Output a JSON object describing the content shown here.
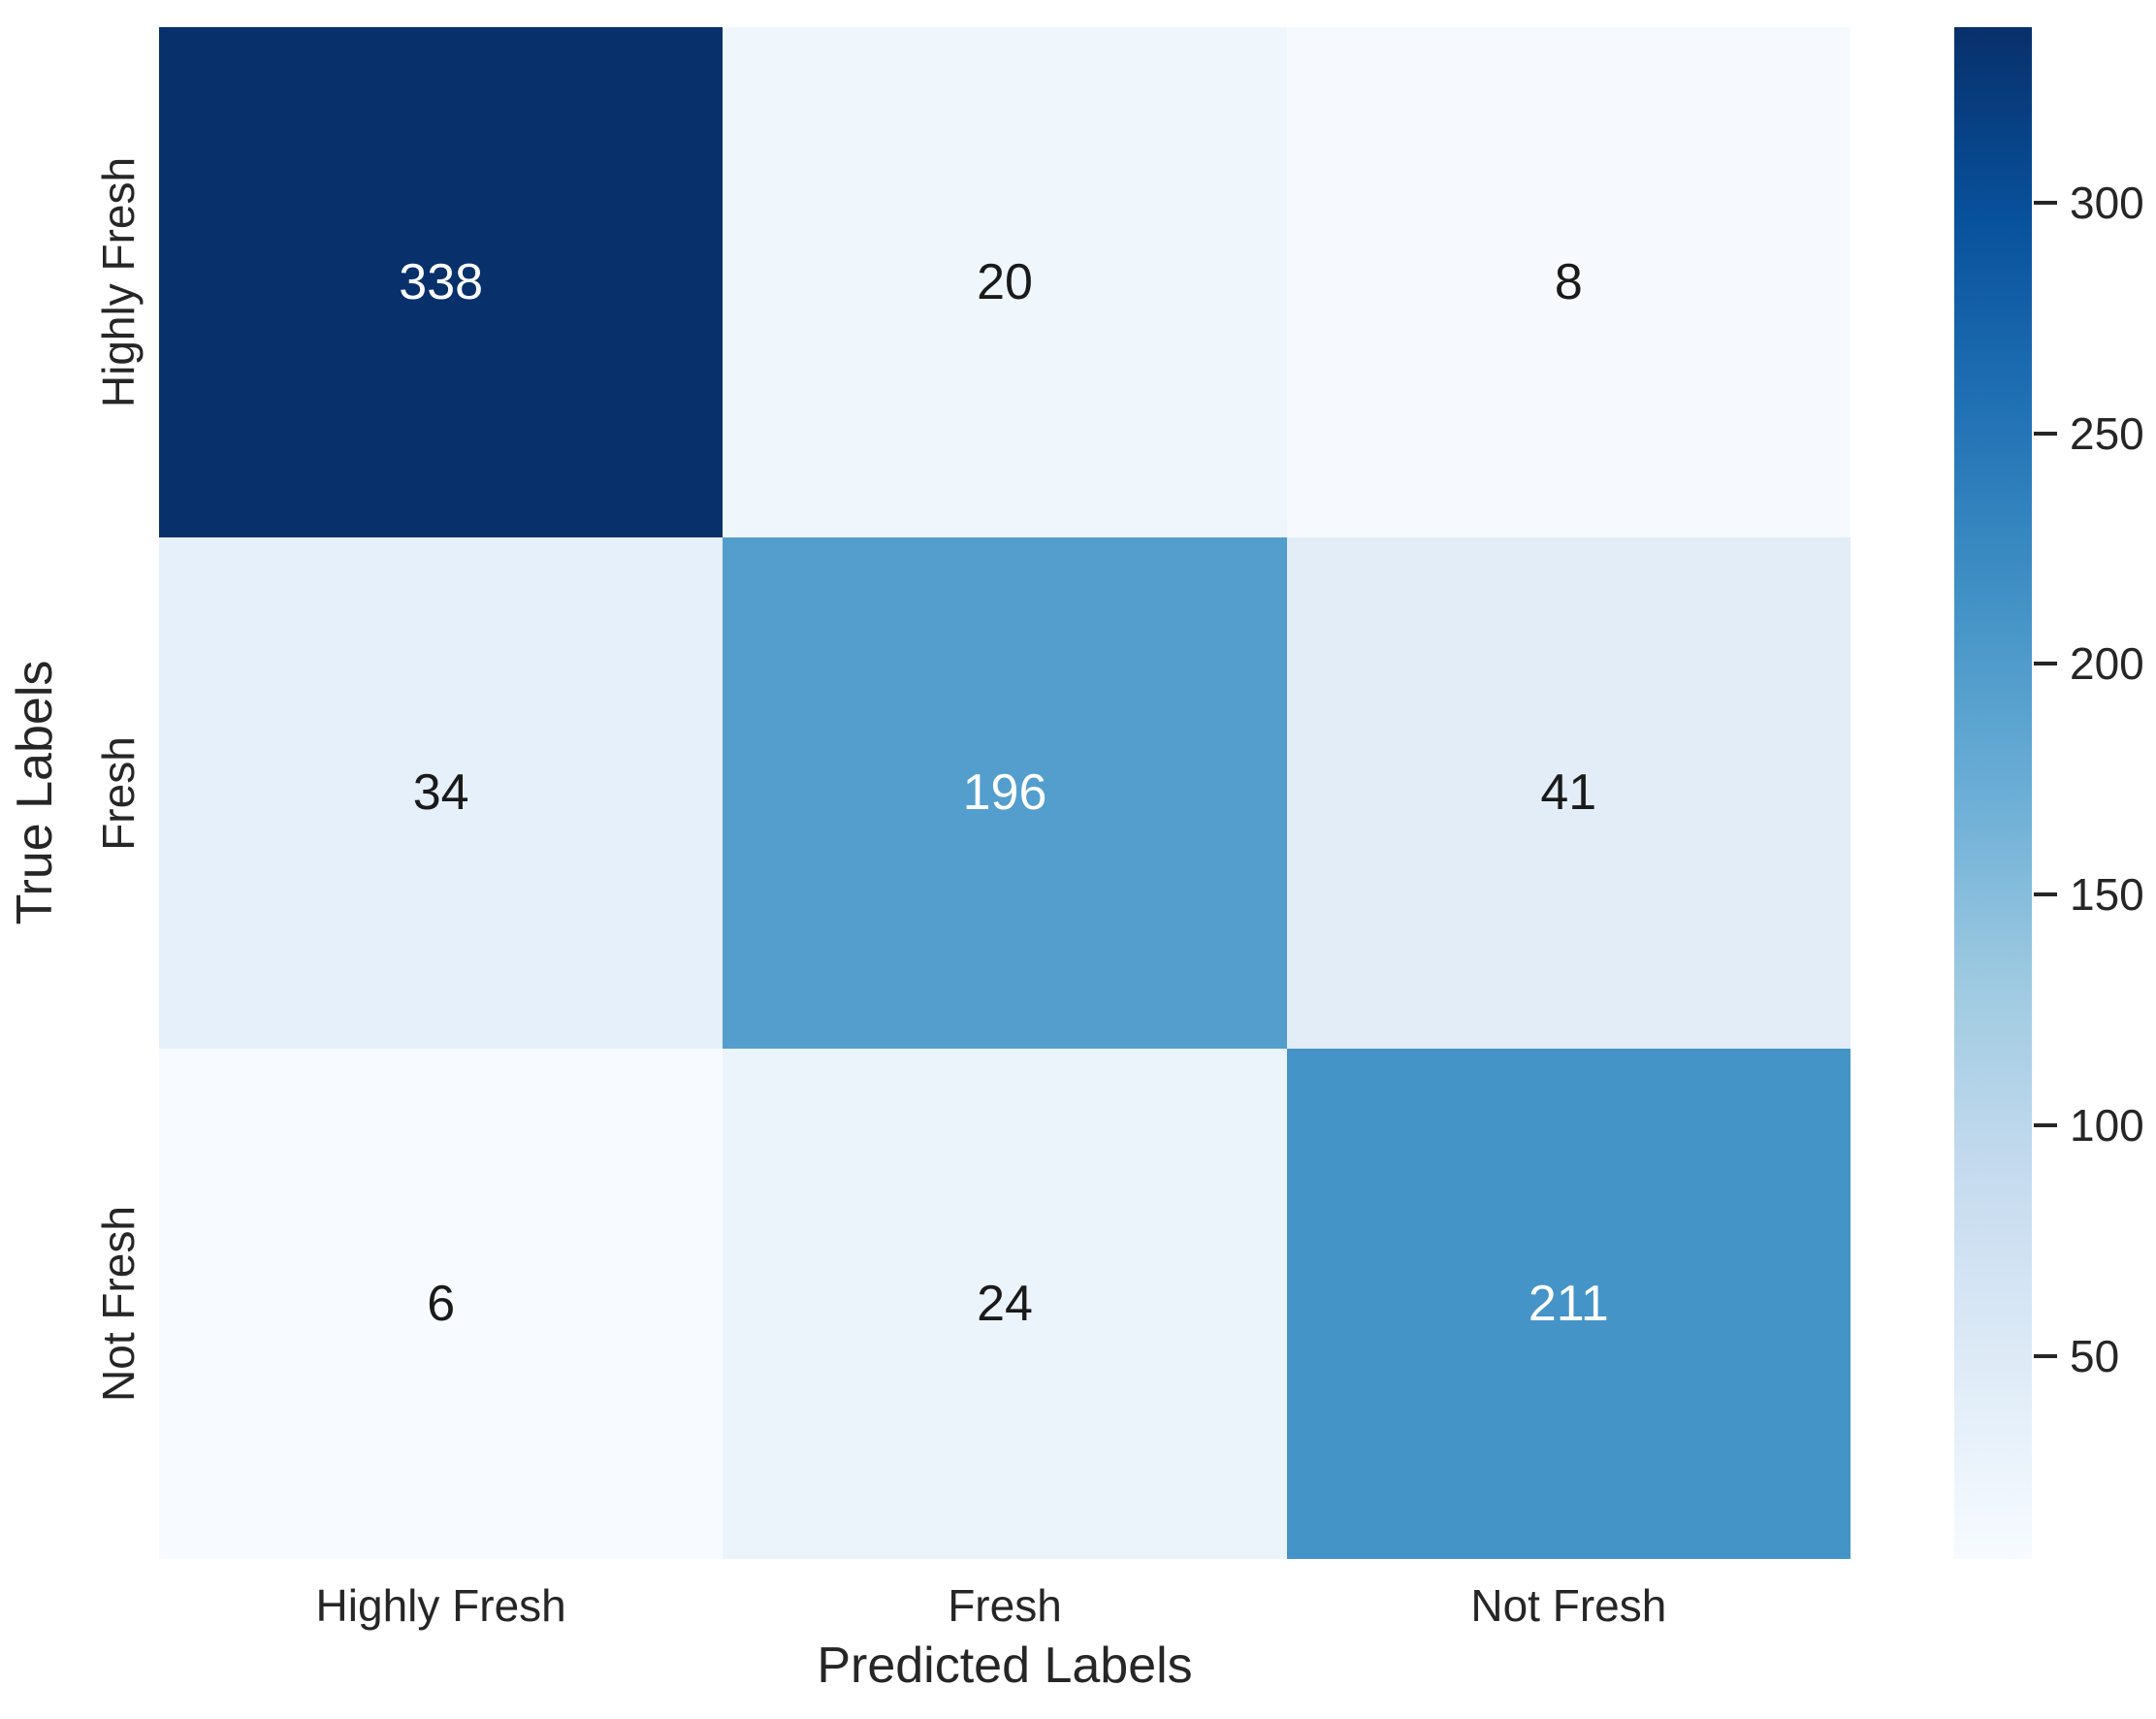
{
  "chart_data": {
    "type": "heatmap",
    "title": "",
    "xlabel": "Predicted Labels",
    "ylabel": "True Labels",
    "x_categories": [
      "Highly Fresh",
      "Fresh",
      "Not Fresh"
    ],
    "y_categories": [
      "Highly Fresh",
      "Fresh",
      "Not Fresh"
    ],
    "values": [
      [
        338,
        20,
        8
      ],
      [
        34,
        196,
        41
      ],
      [
        6,
        24,
        211
      ]
    ],
    "vmin": 6,
    "vmax": 338,
    "colormap": "Blues",
    "colorbar_ticks": [
      50,
      100,
      150,
      200,
      250,
      300
    ],
    "colorbar_position": "right",
    "grid": false,
    "cell_colors": [
      [
        "#08306b",
        "#eff6fc",
        "#f6fafe"
      ],
      [
        "#e6f0fa",
        "#539ecd",
        "#e2edf8"
      ],
      [
        "#f7fbff",
        "#ecf4fb",
        "#4594c7"
      ]
    ],
    "cell_text_colors": [
      [
        "#ffffff",
        "#1a1a1a",
        "#1a1a1a"
      ],
      [
        "#1a1a1a",
        "#ffffff",
        "#1a1a1a"
      ],
      [
        "#1a1a1a",
        "#1a1a1a",
        "#ffffff"
      ]
    ],
    "colormap_stops_top_to_bottom": [
      "#08306b",
      "#08519c",
      "#2171b5",
      "#4292c6",
      "#6baed6",
      "#9ecae1",
      "#c6dbef",
      "#deebf7",
      "#f7fbff"
    ],
    "label_color": "#262626"
  }
}
